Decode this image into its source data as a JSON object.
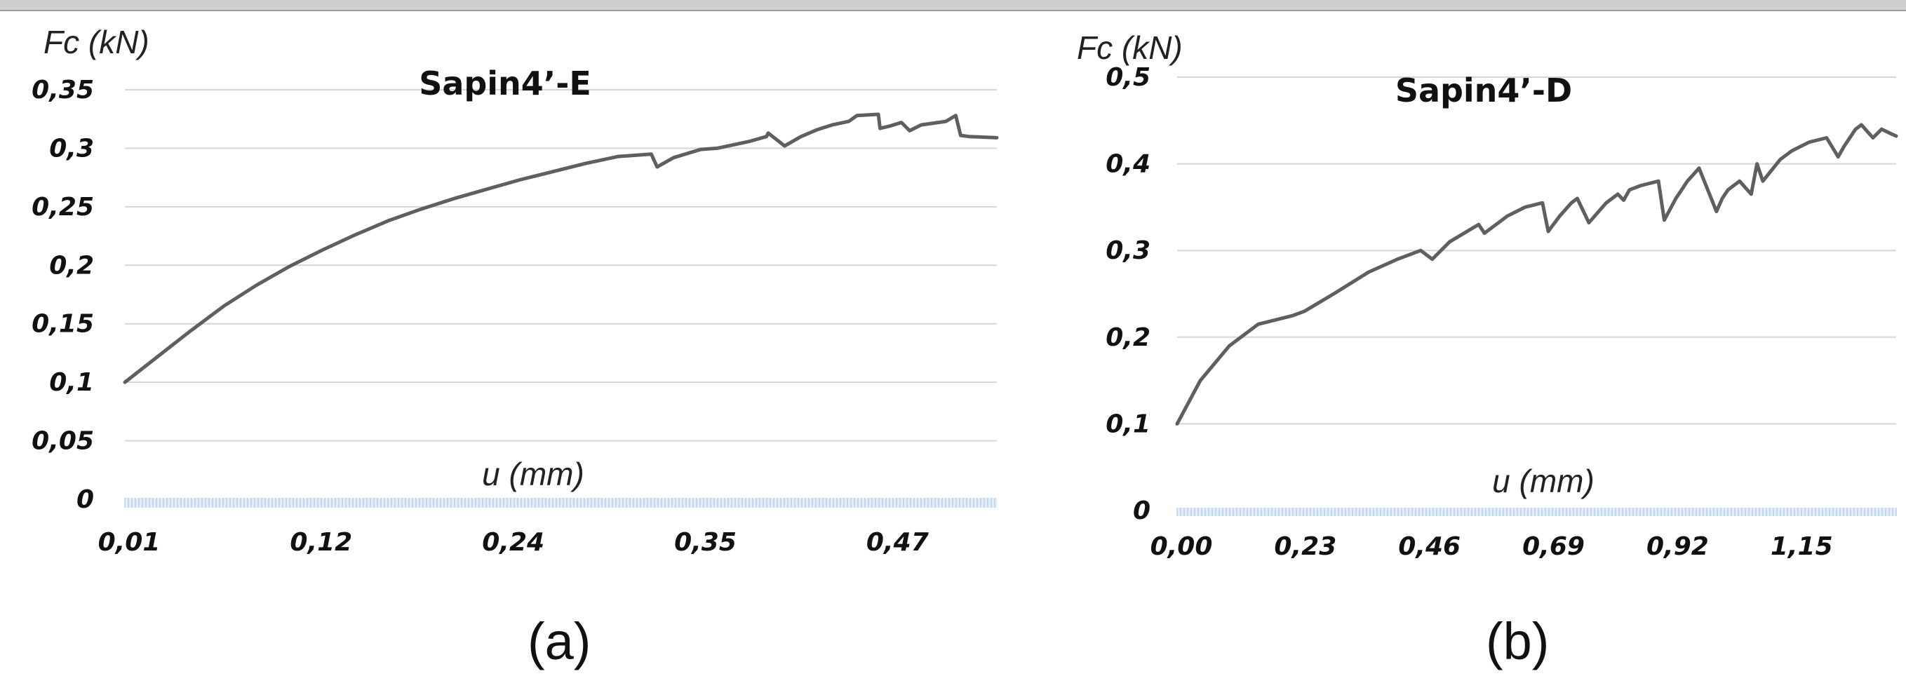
{
  "panels": {
    "a": {
      "label": "(a)"
    },
    "b": {
      "label": "(b)"
    }
  },
  "chart_data": [
    {
      "type": "line",
      "title": "Sapin4’-E",
      "ylabel": "Fc  (kN)",
      "xlabel": "u (mm)",
      "x_tick_labels": [
        "0,01",
        "0,12",
        "0,24",
        "0,35",
        "0,47"
      ],
      "y_tick_labels": [
        "0",
        "0,05",
        "0,1",
        "0,15",
        "0,2",
        "0,25",
        "0,3",
        "0,35"
      ],
      "xlim": [
        0.01,
        0.54
      ],
      "ylim": [
        0,
        0.35
      ],
      "grid": true,
      "series_color": "#5f5f5f",
      "series": [
        {
          "x": [
            0.01,
            0.03,
            0.05,
            0.07,
            0.09,
            0.11,
            0.13,
            0.15,
            0.17,
            0.19,
            0.21,
            0.23,
            0.25,
            0.27,
            0.29,
            0.31,
            0.33,
            0.3335,
            0.3435,
            0.36,
            0.37,
            0.39,
            0.4,
            0.401,
            0.411,
            0.421,
            0.431,
            0.44,
            0.45,
            0.455,
            0.468,
            0.469,
            0.475,
            0.482,
            0.487,
            0.494,
            0.509,
            0.515,
            0.518,
            0.523,
            0.54
          ],
          "y": [
            0.1,
            0.122,
            0.144,
            0.165,
            0.183,
            0.199,
            0.213,
            0.226,
            0.238,
            0.248,
            0.257,
            0.265,
            0.273,
            0.28,
            0.287,
            0.293,
            0.295,
            0.284,
            0.292,
            0.299,
            0.3,
            0.306,
            0.31,
            0.313,
            0.302,
            0.31,
            0.316,
            0.32,
            0.323,
            0.328,
            0.329,
            0.317,
            0.319,
            0.322,
            0.315,
            0.32,
            0.323,
            0.328,
            0.311,
            0.31,
            0.309
          ]
        }
      ]
    },
    {
      "type": "line",
      "title": "Sapin4’-D",
      "ylabel": "Fc  (kN)",
      "xlabel": "u (mm)",
      "x_tick_labels": [
        "0,00",
        "0,23",
        "0,46",
        "0,69",
        "0,92",
        "1,15"
      ],
      "y_tick_labels": [
        "0",
        "0,1",
        "0,2",
        "0,3",
        "0,4",
        "0,5"
      ],
      "xlim": [
        0,
        1.24
      ],
      "ylim": [
        0,
        0.5
      ],
      "grid": true,
      "series_color": "#5f5f5f",
      "series": [
        {
          "x": [
            0.0,
            0.04,
            0.09,
            0.14,
            0.2,
            0.22,
            0.27,
            0.33,
            0.38,
            0.42,
            0.44,
            0.47,
            0.52,
            0.53,
            0.57,
            0.6,
            0.63,
            0.64,
            0.66,
            0.68,
            0.69,
            0.71,
            0.74,
            0.76,
            0.77,
            0.78,
            0.8,
            0.83,
            0.84,
            0.86,
            0.87,
            0.88,
            0.9,
            0.93,
            0.94,
            0.95,
            0.97,
            0.99,
            1.0,
            1.01,
            1.04,
            1.06,
            1.09,
            1.12,
            1.14,
            1.15,
            1.17,
            1.18,
            1.2,
            1.215,
            1.23,
            1.24
          ],
          "y": [
            0.1,
            0.15,
            0.19,
            0.215,
            0.225,
            0.23,
            0.25,
            0.275,
            0.29,
            0.3,
            0.29,
            0.31,
            0.33,
            0.32,
            0.34,
            0.35,
            0.355,
            0.322,
            0.34,
            0.355,
            0.36,
            0.332,
            0.355,
            0.365,
            0.358,
            0.37,
            0.375,
            0.38,
            0.335,
            0.36,
            0.37,
            0.38,
            0.395,
            0.345,
            0.36,
            0.37,
            0.38,
            0.365,
            0.4,
            0.38,
            0.405,
            0.415,
            0.425,
            0.43,
            0.408,
            0.42,
            0.44,
            0.445,
            0.43,
            0.44,
            0.435,
            0.432
          ]
        }
      ]
    }
  ]
}
